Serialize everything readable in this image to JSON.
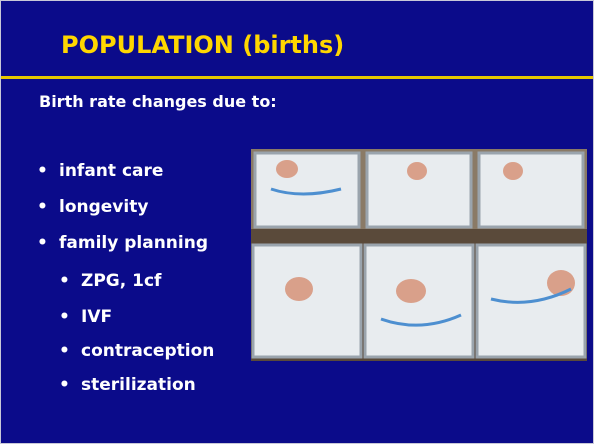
{
  "slide": {
    "title": "POPULATION (births)",
    "intro": "Birth rate changes due to:",
    "bullets": [
      "infant care",
      "longevity",
      "family planning"
    ],
    "sub_bullets": [
      "ZPG, 1cf",
      "IVF",
      "contraception",
      "sterilization"
    ]
  }
}
